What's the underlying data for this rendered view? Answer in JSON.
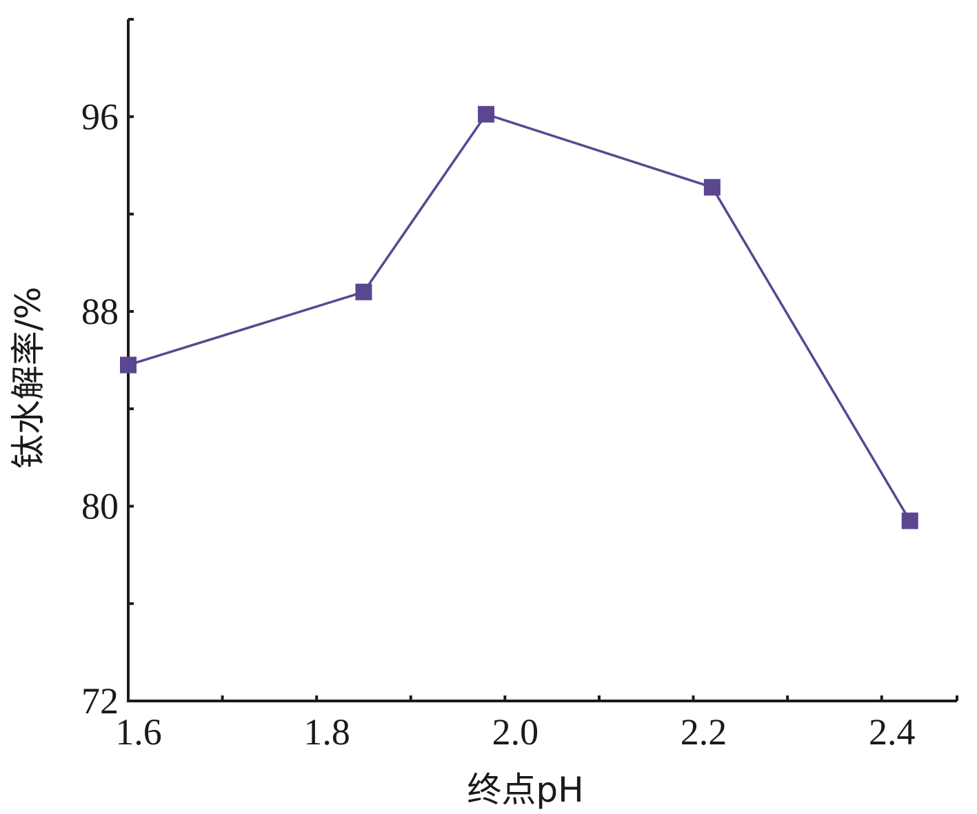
{
  "chart_data": {
    "type": "line",
    "title": "",
    "xlabel": "终点pH",
    "ylabel": "钛水解率/%",
    "xlim": [
      1.6,
      2.48
    ],
    "ylim": [
      72,
      100
    ],
    "x_ticks": [
      1.6,
      1.8,
      2.0,
      2.2,
      2.4
    ],
    "x_tick_labels": [
      "1.6",
      "1.8",
      "2.0",
      "2.2",
      "2.4"
    ],
    "x_minor_ticks": [
      1.7,
      1.9,
      2.1,
      2.3
    ],
    "y_ticks": [
      72,
      80,
      88,
      96
    ],
    "y_tick_labels": [
      "72",
      "80",
      "88",
      "96"
    ],
    "y_minor_ticks": [
      76,
      84,
      92
    ],
    "grid": false,
    "legend": "none",
    "series": [
      {
        "color": "#5b4690",
        "marker": "square",
        "x": [
          1.6,
          1.85,
          1.98,
          2.22,
          2.43
        ],
        "y": [
          85.8,
          88.8,
          96.1,
          93.1,
          79.4
        ]
      }
    ]
  }
}
